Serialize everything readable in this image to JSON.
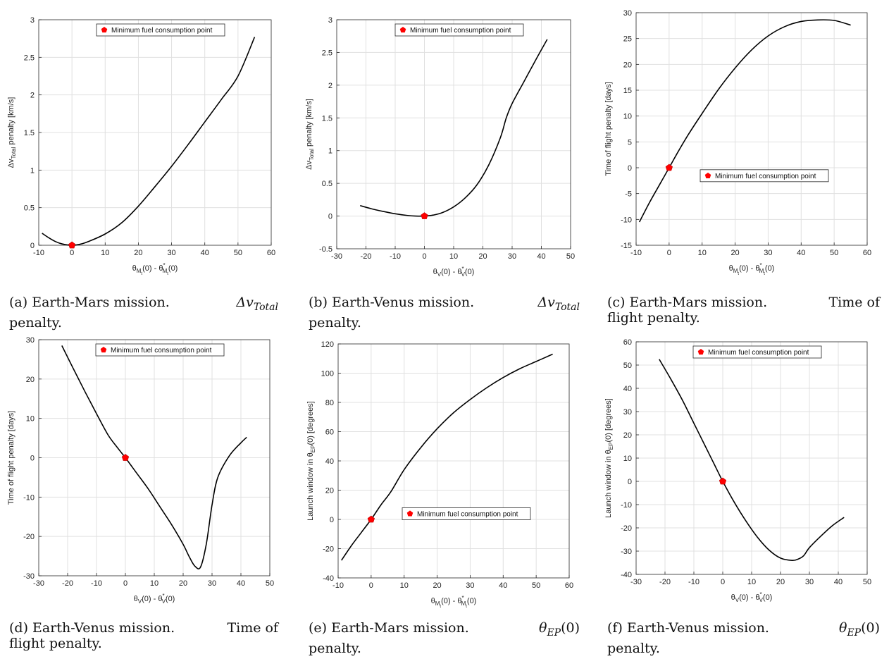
{
  "figure": {
    "legend_label": "Minimum fuel consumption point",
    "colors": {
      "curve": "#000000",
      "marker": "#ff0000",
      "grid": "#e0e0e0",
      "axis": "#262626"
    }
  },
  "panels": [
    {
      "id": "a",
      "caption": {
        "tag": "(a)",
        "text": "Earth-Mars mission.",
        "math": "Δv",
        "math_sub": "Total",
        "rest": "penalty."
      },
      "ylabel_main": "Δv",
      "ylabel_sub": "Total",
      "ylabel_rest": " penalty [km/s]",
      "xlabel_left": "θ",
      "xlabel_left_sub": "M",
      "xlabel_left_subsub": "t",
      "xlabel_mid": "(0) - θ",
      "xlabel_right_sup": "*",
      "xlabel_right_sub": "M",
      "xlabel_right_subsub": "t",
      "xlabel_end": "(0)",
      "legend_position": "top-center"
    },
    {
      "id": "b",
      "caption": {
        "tag": "(b)",
        "text": "Earth-Venus mission.",
        "math": "Δv",
        "math_sub": "Total",
        "rest": "penalty."
      },
      "ylabel_main": "Δv",
      "ylabel_sub": "Total",
      "ylabel_rest": " penalty [km/s]",
      "xlabel_left": "θ",
      "xlabel_left_sub": "V",
      "xlabel_left_subsub": "",
      "xlabel_mid": "(0) - θ",
      "xlabel_right_sup": "*",
      "xlabel_right_sub": "V",
      "xlabel_right_subsub": "",
      "xlabel_end": "(0)",
      "legend_position": "top-center"
    },
    {
      "id": "c",
      "caption": {
        "tag": "(c)",
        "text": "Earth-Mars mission.",
        "math": "",
        "math_sub": "",
        "rest": "Time of",
        "rest2": "flight penalty."
      },
      "ylabel_main": "Time of flight penalty [days]",
      "ylabel_sub": "",
      "ylabel_rest": "",
      "xlabel_left": "θ",
      "xlabel_left_sub": "M",
      "xlabel_left_subsub": "t",
      "xlabel_mid": "(0) - θ",
      "xlabel_right_sup": "*",
      "xlabel_right_sub": "M",
      "xlabel_right_subsub": "t",
      "xlabel_end": "(0)",
      "legend_position": "center"
    },
    {
      "id": "d",
      "caption": {
        "tag": "(d)",
        "text": "Earth-Venus mission.",
        "math": "",
        "math_sub": "",
        "rest": "Time of",
        "rest2": "flight penalty."
      },
      "ylabel_main": "Time of flight penalty [days]",
      "ylabel_sub": "",
      "ylabel_rest": "",
      "xlabel_left": "θ",
      "xlabel_left_sub": "V",
      "xlabel_left_subsub": "",
      "xlabel_mid": "(0) - θ",
      "xlabel_right_sup": "*",
      "xlabel_right_sub": "V",
      "xlabel_right_subsub": "",
      "xlabel_end": "(0)",
      "legend_position": "top-center"
    },
    {
      "id": "e",
      "caption": {
        "tag": "(e)",
        "text": "Earth-Mars mission.",
        "math": "θ",
        "math_sub": "EP",
        "rest": "(0)",
        "rest2": "penalty."
      },
      "ylabel_main": "Launch window in θ",
      "ylabel_sub": "EP",
      "ylabel_rest": "(0) [degrees]",
      "xlabel_left": "θ",
      "xlabel_left_sub": "M",
      "xlabel_left_subsub": "t",
      "xlabel_mid": "(0) - θ",
      "xlabel_right_sup": "*",
      "xlabel_right_sub": "M",
      "xlabel_right_subsub": "t",
      "xlabel_end": "(0)",
      "legend_position": "center"
    },
    {
      "id": "f",
      "caption": {
        "tag": "(f)",
        "text": "Earth-Venus mission.",
        "math": "θ",
        "math_sub": "EP",
        "rest": "(0)",
        "rest2": "penalty."
      },
      "ylabel_main": "Launch window in θ",
      "ylabel_sub": "EP",
      "ylabel_rest": "(0) [degrees]",
      "xlabel_left": "θ",
      "xlabel_left_sub": "V",
      "xlabel_left_subsub": "",
      "xlabel_mid": "(0) - θ",
      "xlabel_right_sup": "*",
      "xlabel_right_sub": "V",
      "xlabel_right_subsub": "",
      "xlabel_end": "(0)",
      "legend_position": "top-center"
    }
  ],
  "chart_data": [
    {
      "type": "line",
      "panel": "a",
      "title": "",
      "xlabel": "θ_Mt(0) - θ*_Mt(0)",
      "ylabel": "Δv_Total penalty [km/s]",
      "xlim": [
        -10,
        60
      ],
      "ylim": [
        0,
        3
      ],
      "xticks": [
        -10,
        0,
        10,
        20,
        30,
        40,
        50,
        60
      ],
      "yticks": [
        0,
        0.5,
        1,
        1.5,
        2,
        2.5,
        3
      ],
      "ytick_labels": [
        "0",
        "0.5",
        "1",
        "1.5",
        "2",
        "2.5",
        "3"
      ],
      "grid": true,
      "series": [
        {
          "name": "penalty",
          "x": [
            -9,
            -7,
            -5,
            -3,
            -1,
            0,
            1,
            3,
            5,
            10,
            15,
            20,
            25,
            30,
            35,
            40,
            45,
            50,
            55
          ],
          "y": [
            0.16,
            0.1,
            0.05,
            0.018,
            0.002,
            0,
            0.002,
            0.02,
            0.05,
            0.15,
            0.3,
            0.52,
            0.78,
            1.05,
            1.34,
            1.64,
            1.94,
            2.25,
            2.77
          ]
        }
      ],
      "marker": {
        "x": 0,
        "y": 0,
        "label": "Minimum fuel consumption point"
      }
    },
    {
      "type": "line",
      "panel": "b",
      "title": "",
      "xlabel": "θ_V(0) - θ*_V(0)",
      "ylabel": "Δv_Total penalty [km/s]",
      "xlim": [
        -30,
        50
      ],
      "ylim": [
        -0.5,
        3
      ],
      "xticks": [
        -30,
        -20,
        -10,
        0,
        10,
        20,
        30,
        40,
        50
      ],
      "yticks": [
        -0.5,
        0,
        0.5,
        1,
        1.5,
        2,
        2.5,
        3
      ],
      "ytick_labels": [
        "-0.5",
        "0",
        "0.5",
        "1",
        "1.5",
        "2",
        "2.5",
        "3"
      ],
      "grid": true,
      "series": [
        {
          "name": "penalty",
          "x": [
            -22,
            -18,
            -14,
            -10,
            -6,
            -3,
            0,
            3,
            6,
            10,
            14,
            18,
            22,
            26,
            28,
            30,
            34,
            38,
            42
          ],
          "y": [
            0.16,
            0.11,
            0.07,
            0.035,
            0.01,
            0,
            0,
            0.015,
            0.05,
            0.14,
            0.28,
            0.48,
            0.78,
            1.2,
            1.5,
            1.72,
            2.05,
            2.38,
            2.7
          ]
        }
      ],
      "marker": {
        "x": 0,
        "y": 0,
        "label": "Minimum fuel consumption point"
      }
    },
    {
      "type": "line",
      "panel": "c",
      "title": "",
      "xlabel": "θ_Mt(0) - θ*_Mt(0)",
      "ylabel": "Time of flight penalty [days]",
      "xlim": [
        -10,
        60
      ],
      "ylim": [
        -15,
        30
      ],
      "xticks": [
        -10,
        0,
        10,
        20,
        30,
        40,
        50,
        60
      ],
      "yticks": [
        -15,
        -10,
        -5,
        0,
        5,
        10,
        15,
        20,
        25,
        30
      ],
      "ytick_labels": [
        "-15",
        "-10",
        "-5",
        "0",
        "5",
        "10",
        "15",
        "20",
        "25",
        "30"
      ],
      "grid": true,
      "series": [
        {
          "name": "penalty",
          "x": [
            -9,
            -6,
            -3,
            0,
            3,
            6,
            10,
            15,
            20,
            25,
            30,
            35,
            40,
            45,
            50,
            55
          ],
          "y": [
            -10.5,
            -6.8,
            -3.4,
            0,
            3.4,
            6.6,
            10.5,
            15.2,
            19.3,
            22.8,
            25.5,
            27.3,
            28.3,
            28.6,
            28.5,
            27.6
          ]
        }
      ],
      "marker": {
        "x": 0,
        "y": 0,
        "label": "Minimum fuel consumption point"
      }
    },
    {
      "type": "line",
      "panel": "d",
      "title": "",
      "xlabel": "θ_V(0) - θ*_V(0)",
      "ylabel": "Time of flight penalty [days]",
      "xlim": [
        -30,
        50
      ],
      "ylim": [
        -30,
        30
      ],
      "xticks": [
        -30,
        -20,
        -10,
        0,
        10,
        20,
        30,
        40,
        50
      ],
      "yticks": [
        -30,
        -20,
        -10,
        0,
        10,
        20,
        30
      ],
      "ytick_labels": [
        "-30",
        "-20",
        "-10",
        "0",
        "10",
        "20",
        "30"
      ],
      "grid": true,
      "series": [
        {
          "name": "penalty",
          "x": [
            -22,
            -18,
            -14,
            -10,
            -6,
            -3,
            0,
            4,
            8,
            12,
            16,
            20,
            22,
            24,
            26,
            28,
            30,
            32,
            36,
            40,
            42
          ],
          "y": [
            28.5,
            22.6,
            16.8,
            11.2,
            5.8,
            2.8,
            0,
            -4,
            -8,
            -12.5,
            -17,
            -22,
            -25,
            -27.5,
            -27.8,
            -22,
            -12,
            -5,
            0.5,
            3.8,
            5.2
          ]
        }
      ],
      "marker": {
        "x": 0,
        "y": 0,
        "label": "Minimum fuel consumption point"
      }
    },
    {
      "type": "line",
      "panel": "e",
      "title": "",
      "xlabel": "θ_Mt(0) - θ*_Mt(0)",
      "ylabel": "Launch window in θ_EP(0) [degrees]",
      "xlim": [
        -10,
        60
      ],
      "ylim": [
        -40,
        120
      ],
      "xticks": [
        -10,
        0,
        10,
        20,
        30,
        40,
        50,
        60
      ],
      "yticks": [
        -40,
        -20,
        0,
        20,
        40,
        60,
        80,
        100,
        120
      ],
      "ytick_labels": [
        "-40",
        "-20",
        "0",
        "20",
        "40",
        "60",
        "80",
        "100",
        "120"
      ],
      "grid": true,
      "series": [
        {
          "name": "launch window",
          "x": [
            -9,
            -6,
            -3,
            0,
            3,
            6,
            10,
            15,
            20,
            25,
            30,
            35,
            40,
            45,
            50,
            55
          ],
          "y": [
            -28,
            -18,
            -9,
            0,
            10,
            19,
            34,
            49,
            62,
            73,
            82,
            90,
            97,
            103,
            108,
            113
          ]
        }
      ],
      "marker": {
        "x": 0,
        "y": 0,
        "label": "Minimum fuel consumption point"
      }
    },
    {
      "type": "line",
      "panel": "f",
      "title": "",
      "xlabel": "θ_V(0) - θ*_V(0)",
      "ylabel": "Launch window in θ_EP(0) [degrees]",
      "xlim": [
        -30,
        50
      ],
      "ylim": [
        -40,
        60
      ],
      "xticks": [
        -30,
        -20,
        -10,
        0,
        10,
        20,
        30,
        40,
        50
      ],
      "yticks": [
        -40,
        -30,
        -20,
        -10,
        0,
        10,
        20,
        30,
        40,
        50,
        60
      ],
      "ytick_labels": [
        "-40",
        "-30",
        "-20",
        "-10",
        "0",
        "10",
        "20",
        "30",
        "40",
        "50",
        "60"
      ],
      "grid": true,
      "series": [
        {
          "name": "launch window",
          "x": [
            -22,
            -18,
            -14,
            -10,
            -6,
            -3,
            0,
            4,
            8,
            12,
            16,
            20,
            24,
            26,
            28,
            30,
            34,
            38,
            42
          ],
          "y": [
            52.5,
            44,
            35,
            25,
            15,
            7.5,
            0,
            -9,
            -17,
            -24,
            -29.5,
            -33,
            -34,
            -33.5,
            -32,
            -28.5,
            -23.5,
            -19,
            -15.5
          ]
        }
      ],
      "marker": {
        "x": 0,
        "y": 0,
        "label": "Minimum fuel consumption point"
      }
    }
  ]
}
